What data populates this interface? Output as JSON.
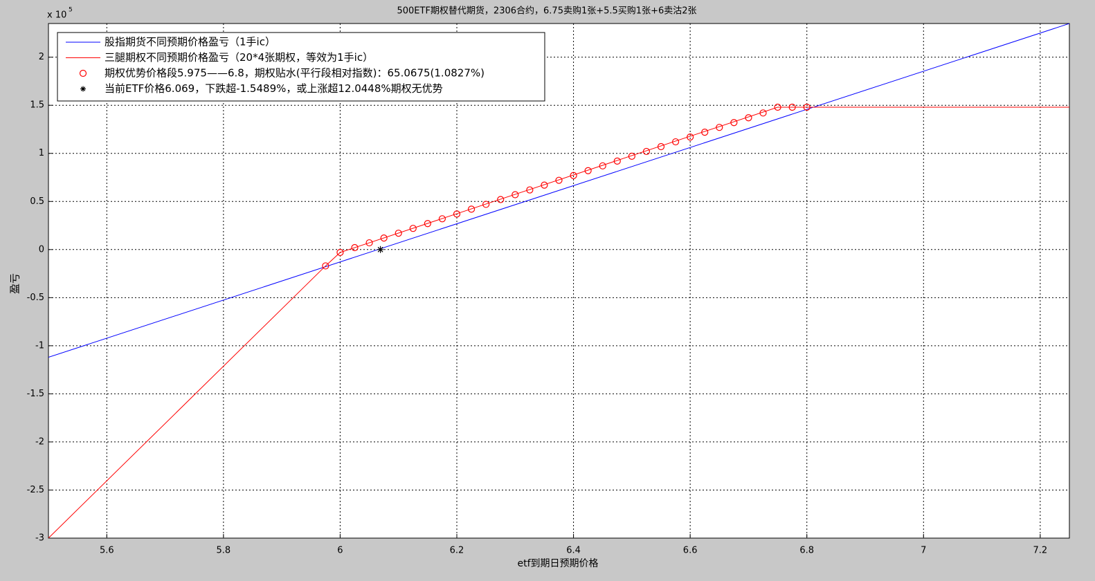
{
  "chart_data": {
    "type": "line",
    "title": "500ETF期权替代期货，2306合约，6.75卖购1张+5.5买购1张+6卖沽2张",
    "x_label": "etf到期日预期价格",
    "y_label": "盈亏",
    "y_scale_label": "x 10",
    "y_scale_exponent": "5",
    "xlim": [
      5.5,
      7.25
    ],
    "ylim": [
      -3,
      2.35
    ],
    "xticks": [
      5.6,
      5.8,
      6,
      6.2,
      6.4,
      6.6,
      6.8,
      7,
      7.2
    ],
    "yticks": [
      -3,
      -2.5,
      -2,
      -1.5,
      -1,
      -0.5,
      0,
      0.5,
      1,
      1.5,
      2
    ],
    "grid": true,
    "legend": "top-left",
    "series": [
      {
        "name": "股指期货不同预期价格盈亏（1手ic）",
        "color": "#0000ff",
        "marker": "none",
        "x": [
          5.5,
          7.25
        ],
        "values": [
          -1.12,
          2.35
        ]
      },
      {
        "name": "三腿期权不同预期价格盈亏（20*4张期权，等效为1手ic）",
        "color": "#ff0000",
        "marker": "none",
        "x": [
          5.5,
          5.975,
          6.0,
          6.75,
          6.8,
          7.25
        ],
        "values": [
          -3,
          -0.17,
          -0.03,
          1.48,
          1.48,
          1.48
        ]
      },
      {
        "name": "期权优势价格段5.975——6.8，期权贴水(平行段相对指数)：65.0675(1.0827%)",
        "color": "#ff0000",
        "marker": "o",
        "x": [
          5.975,
          6.0,
          6.025,
          6.05,
          6.075,
          6.1,
          6.125,
          6.15,
          6.175,
          6.2,
          6.225,
          6.25,
          6.275,
          6.3,
          6.325,
          6.35,
          6.375,
          6.4,
          6.425,
          6.45,
          6.475,
          6.5,
          6.525,
          6.55,
          6.575,
          6.6,
          6.625,
          6.65,
          6.675,
          6.7,
          6.725,
          6.75,
          6.775,
          6.8
        ],
        "values": [
          -0.17,
          -0.03,
          0.02,
          0.07,
          0.12,
          0.17,
          0.22,
          0.27,
          0.32,
          0.37,
          0.42,
          0.47,
          0.52,
          0.57,
          0.62,
          0.67,
          0.72,
          0.77,
          0.82,
          0.87,
          0.92,
          0.97,
          1.02,
          1.07,
          1.12,
          1.17,
          1.22,
          1.27,
          1.32,
          1.37,
          1.42,
          1.48,
          1.48,
          1.48
        ]
      },
      {
        "name": "当前ETF价格6.069，下跌超-1.5489%，或上涨超12.0448%期权无优势",
        "color": "#000000",
        "marker": "*",
        "x": [
          6.069
        ],
        "values": [
          0
        ]
      }
    ]
  }
}
